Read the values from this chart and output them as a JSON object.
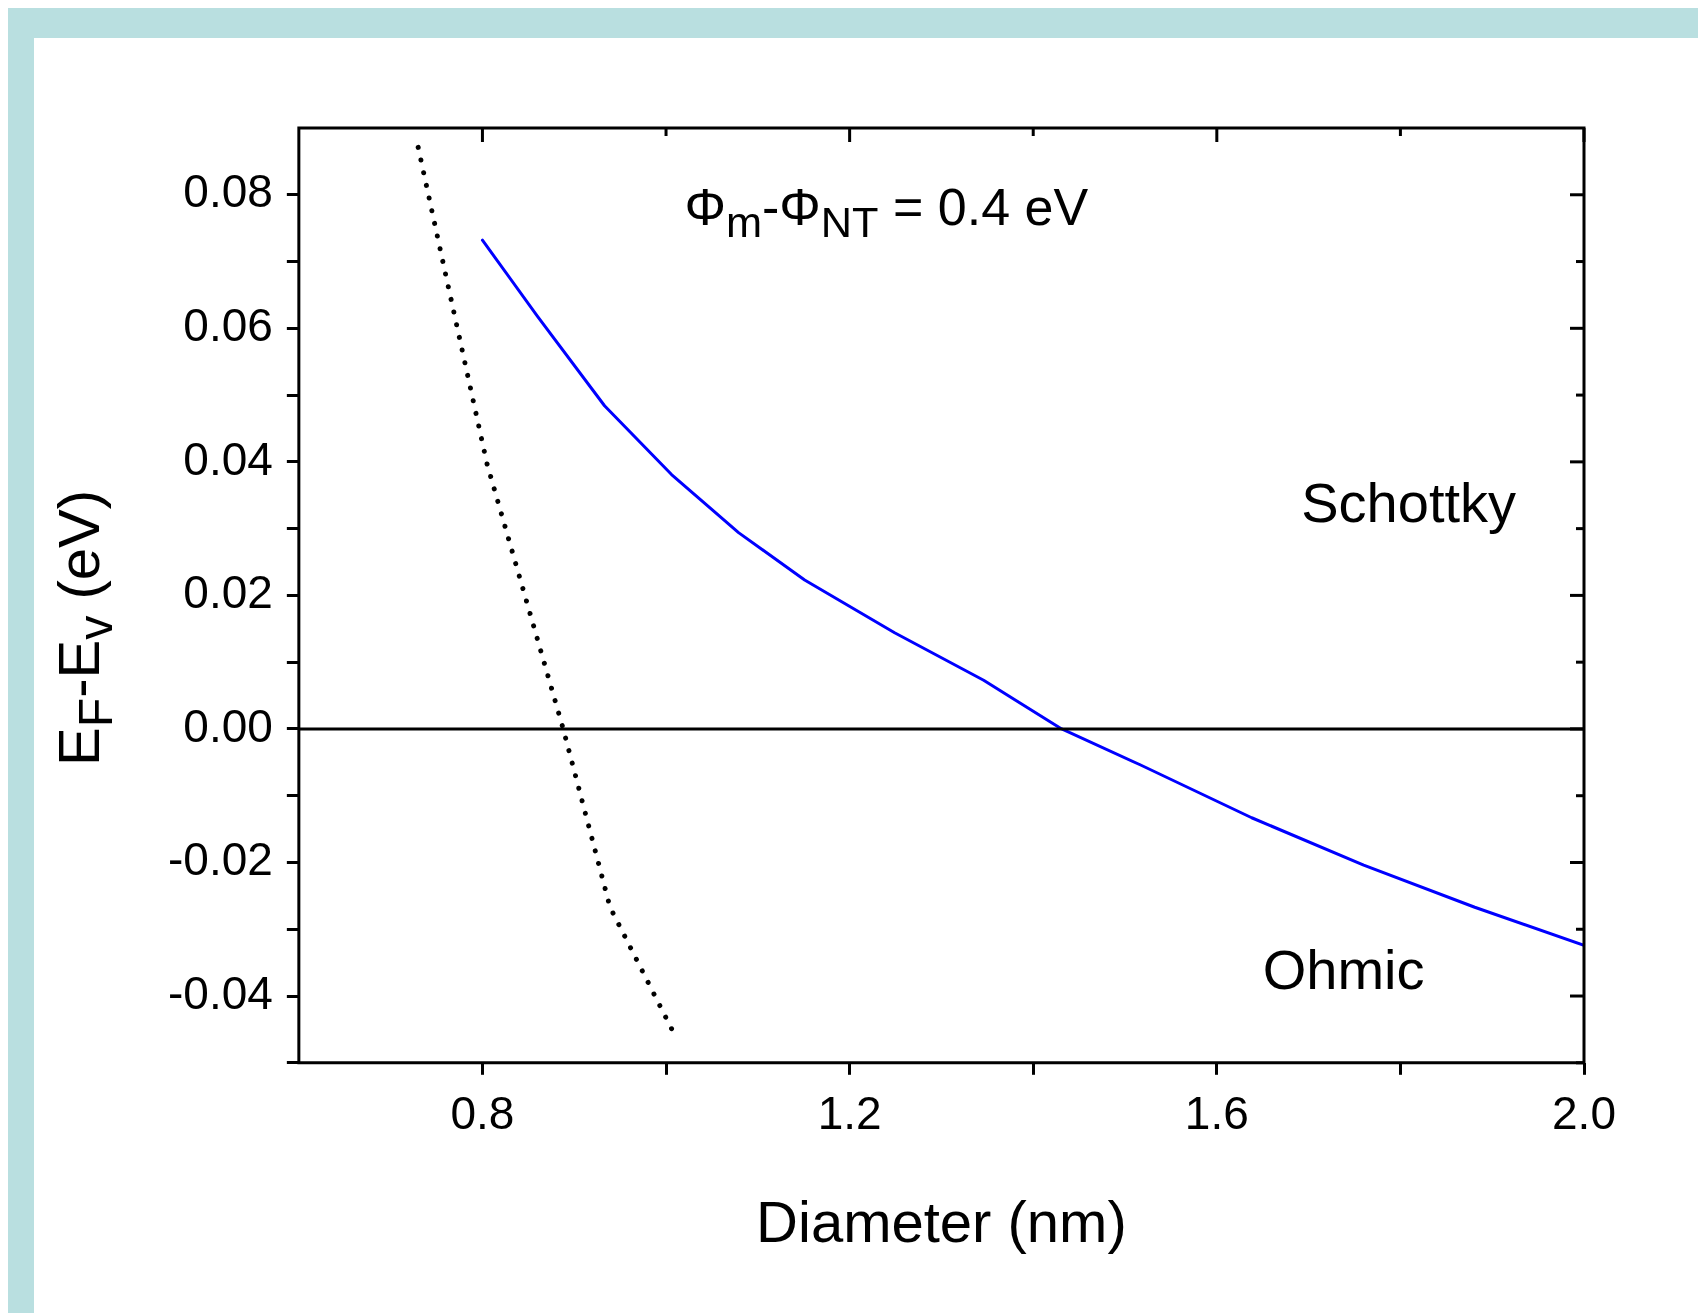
{
  "chart_data": {
    "type": "line",
    "xlabel": "Diameter  (nm)",
    "ylabel": "E$_{F}$-E$_{v}$  (eV)",
    "annotations": [
      "Φ$_{m}$-Φ$_{NT}$ = 0.4 eV",
      "Schottky",
      "Ohmic"
    ],
    "series": [
      {
        "color": "#0000ff",
        "line_style": "solid",
        "x": [
          0.8,
          0.86,
          0.933,
          1.006,
          1.079,
          1.151,
          1.249,
          1.346,
          1.431,
          1.517,
          1.638,
          1.76,
          1.881,
          2.0
        ],
        "values": [
          0.0732,
          0.0618,
          0.0484,
          0.0381,
          0.0294,
          0.0223,
          0.0144,
          0.0073,
          0.0,
          -0.0054,
          -0.0133,
          -0.0204,
          -0.0267,
          -0.0324
        ]
      },
      {
        "color": "#000000",
        "line_style": "dotted",
        "x": [
          0.73,
          0.76,
          0.805,
          0.888,
          0.939,
          1.006
        ],
        "values": [
          0.0871,
          0.068,
          0.0397,
          0.0,
          -0.0267,
          -0.0449
        ]
      }
    ],
    "ref_lines": [
      {
        "axis": "y",
        "value": 0,
        "color": "#000000",
        "line_style": "solid"
      }
    ],
    "xlim": [
      0.6,
      2.0
    ],
    "ylim": [
      -0.05,
      0.09
    ],
    "xticks": [
      {
        "value": 0.8,
        "label": "0.8"
      },
      {
        "value": 1.0,
        "label": null
      },
      {
        "value": 1.2,
        "label": "1.2"
      },
      {
        "value": 1.4,
        "label": null
      },
      {
        "value": 1.6,
        "label": "1.6"
      },
      {
        "value": 1.8,
        "label": null
      },
      {
        "value": 2.0,
        "label": "2.0"
      }
    ],
    "yticks": [
      {
        "value": -0.05,
        "label": null
      },
      {
        "value": -0.04,
        "label": "-0.04"
      },
      {
        "value": -0.03,
        "label": null
      },
      {
        "value": -0.02,
        "label": "-0.02"
      },
      {
        "value": -0.01,
        "label": null
      },
      {
        "value": 0,
        "label": "0.00"
      },
      {
        "value": 0.01,
        "label": null
      },
      {
        "value": 0.02,
        "label": "0.02"
      },
      {
        "value": 0.03,
        "label": null
      },
      {
        "value": 0.04,
        "label": "0.04"
      },
      {
        "value": 0.05,
        "label": null
      },
      {
        "value": 0.06,
        "label": "0.06"
      },
      {
        "value": 0.07,
        "label": null
      },
      {
        "value": 0.08,
        "label": "0.08"
      }
    ],
    "grid": false,
    "legend": false,
    "marker": "none"
  }
}
